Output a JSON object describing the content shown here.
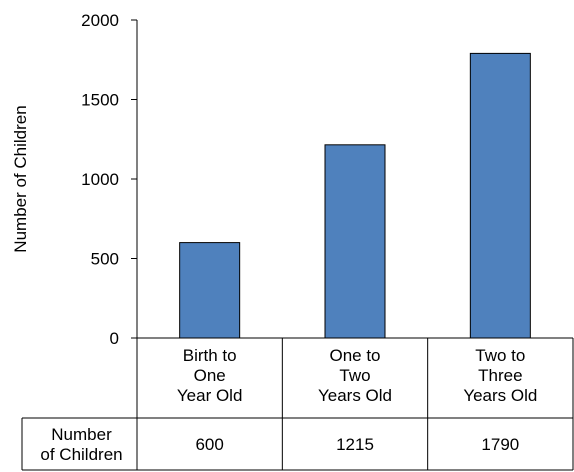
{
  "chart_data": {
    "type": "bar",
    "categories": [
      [
        "Birth to",
        "One",
        "Year Old"
      ],
      [
        "One to",
        "Two",
        "Years Old"
      ],
      [
        "Two to",
        "Three",
        "Years Old"
      ]
    ],
    "values": [
      600,
      1215,
      1790
    ],
    "ylabel": "Number of Children",
    "ylim": [
      0,
      2000
    ],
    "yticks": [
      0,
      500,
      1000,
      1500,
      2000
    ],
    "grid": false,
    "bar_color": "#4F81BD",
    "bar_border_color": "#000000",
    "data_table": {
      "row_label": [
        "Number",
        "of Children"
      ],
      "values": [
        "600",
        "1215",
        "1790"
      ]
    }
  }
}
